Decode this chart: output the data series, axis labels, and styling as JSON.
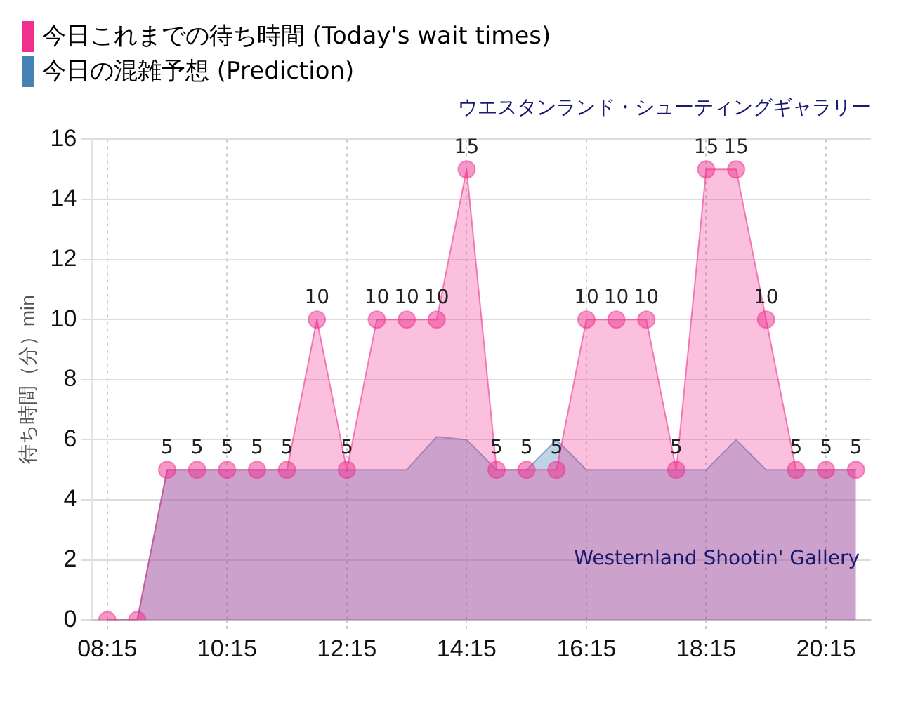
{
  "chart_data": {
    "type": "area",
    "subtitle": "ウエスタンランド・シューティングギャラリー",
    "ylabel": "待ち時間（分）min",
    "x": [
      8.25,
      8.75,
      9.25,
      9.75,
      10.25,
      10.75,
      11.25,
      11.75,
      12.25,
      12.75,
      13.25,
      13.75,
      14.25,
      14.75,
      15.25,
      15.75,
      16.25,
      16.75,
      17.25,
      17.75,
      18.25,
      18.75,
      19.25,
      19.75,
      20.25,
      20.75
    ],
    "xlim": [
      8,
      21
    ],
    "xticks": [
      {
        "value": 8.25,
        "label": "08:15"
      },
      {
        "value": 10.25,
        "label": "10:15"
      },
      {
        "value": 12.25,
        "label": "12:15"
      },
      {
        "value": 14.25,
        "label": "14:15"
      },
      {
        "value": 16.25,
        "label": "16:15"
      },
      {
        "value": 18.25,
        "label": "18:15"
      },
      {
        "value": 20.25,
        "label": "20:15"
      }
    ],
    "ylim": [
      0,
      16
    ],
    "yticks": [
      0,
      2,
      4,
      6,
      8,
      10,
      12,
      14,
      16
    ],
    "grid": true,
    "legend": "top left",
    "series": [
      {
        "name": "今日これまでの待ち時間 (Today's wait times)",
        "color": "#f0308f",
        "marker": "circle",
        "values": [
          0,
          0,
          5,
          5,
          5,
          5,
          5,
          10,
          5,
          10,
          10,
          10,
          15,
          5,
          5,
          5,
          10,
          10,
          10,
          5,
          15,
          15,
          10,
          5,
          5,
          5
        ],
        "value_labels": [
          null,
          null,
          "5",
          "5",
          "5",
          "5",
          "5",
          "10",
          "5",
          "10",
          "10",
          "10",
          "15",
          "5",
          "5",
          "5",
          "10",
          "10",
          "10",
          "5",
          "15",
          "15",
          "10",
          "5",
          "5",
          "5"
        ]
      },
      {
        "name": "今日の混雑予想 (Prediction)",
        "color": "#4682b4",
        "marker": "none",
        "values": [
          0,
          0,
          5,
          5,
          5,
          5,
          5,
          5,
          5,
          5,
          5,
          6.1,
          6,
          5,
          5,
          6,
          5,
          5,
          5,
          5,
          5,
          6,
          5,
          5,
          5,
          5
        ]
      }
    ],
    "annotations": [
      "Westernland Shootin' Gallery"
    ]
  }
}
